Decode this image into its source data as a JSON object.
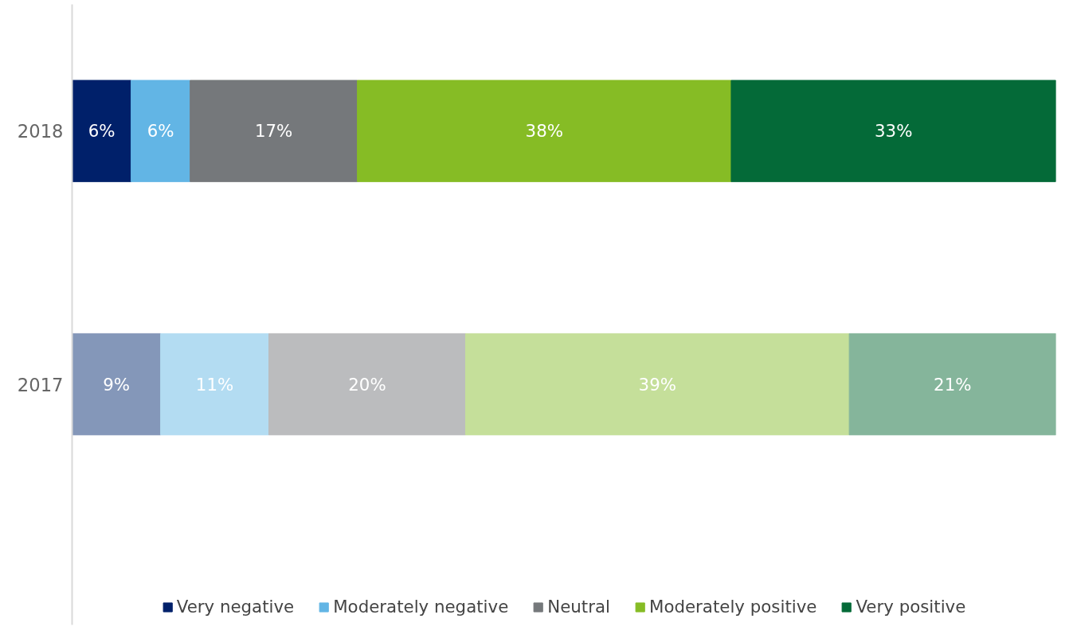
{
  "chart_data": {
    "type": "bar",
    "orientation": "horizontal",
    "stacked": true,
    "categories": [
      "2018",
      "2017"
    ],
    "series": [
      {
        "name": "Very negative",
        "colors": [
          "#00206a",
          "#8497b9"
        ],
        "values": [
          6,
          9
        ],
        "value_labels": [
          "6%",
          "9%"
        ]
      },
      {
        "name": "Moderately negative",
        "colors": [
          "#62b5e5",
          "#b3dcf2"
        ],
        "values": [
          6,
          11
        ],
        "value_labels": [
          "6%",
          "11%"
        ]
      },
      {
        "name": "Neutral",
        "colors": [
          "#75787b",
          "#bbbcbe"
        ],
        "values": [
          17,
          20
        ],
        "value_labels": [
          "17%",
          "20%"
        ]
      },
      {
        "name": "Moderately positive",
        "colors": [
          "#86bc25",
          "#c5df9a"
        ],
        "values": [
          38,
          39
        ],
        "value_labels": [
          "38%",
          "39%"
        ]
      },
      {
        "name": "Very positive",
        "colors": [
          "#046a38",
          "#85b59b"
        ],
        "values": [
          33,
          21
        ],
        "value_labels": [
          "33%",
          "21%"
        ]
      }
    ],
    "tick_labels": "y",
    "legend": "bottom"
  }
}
